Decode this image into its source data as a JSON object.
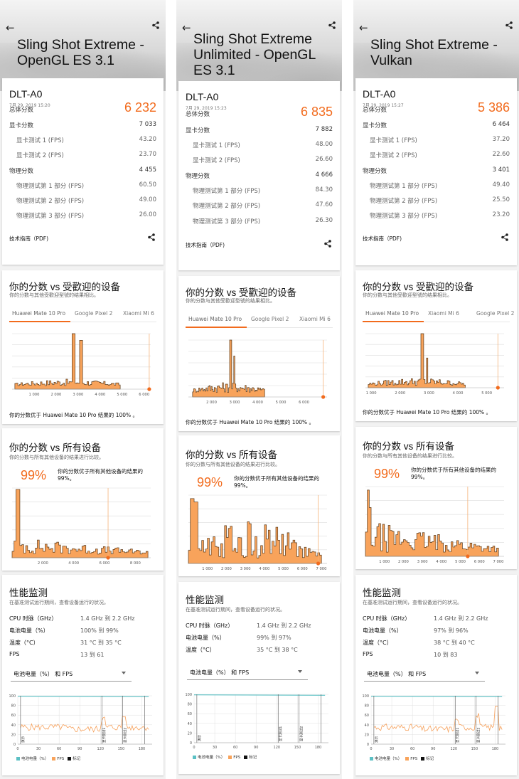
{
  "labels": {
    "total": "总体分数",
    "graphics": "显卡分数",
    "gt1": "显卡测试 1 (FPS)",
    "gt2": "显卡测试 2 (FPS)",
    "physics": "物理分数",
    "pt1": "物理测试第 1 部分 (FPS)",
    "pt2": "物理测试第 2 部分 (FPS)",
    "pt3": "物理测试第 3 部分 (FPS)",
    "tech_guide": "技术指南（PDF)",
    "popular_title": "你的分数 vs 受歡迎的设备",
    "popular_sub": "你的分数与其他受歡迎型號的结果相比。",
    "all_title": "你的分数 vs 所有设备",
    "all_sub": "你的分数与所有其他设备的结果进行比较。",
    "mon_title": "性能监测",
    "mon_sub": "在基准测试运行期间，查看设备运行的状况。",
    "cpu": "CPU 时脉（GHz）",
    "battery": "电池电量（%）",
    "temp": "温度（°C）",
    "fps": "FPS",
    "dropdown": "电池电量（%） 和 FPS",
    "legend_battery": "电池电量（%）",
    "legend_fps": "FPS",
    "legend_mark": "标记",
    "mark_start": "演示",
    "mark_gt1": "显卡测试1",
    "mark_gt2": "显卡测试2"
  },
  "icons": {
    "back": "back-arrow-icon",
    "share": "share-icon",
    "dropdown": "chevron-down-icon"
  },
  "colors": {
    "accent": "#f26b1d",
    "bar_fill": "#f8a35b",
    "bar_stroke": "#5a3a1a",
    "battery_line": "#5bc0c4"
  },
  "columns": [
    {
      "title": "Sling Shot Extreme - OpenGL ES 3.1",
      "device": "DLT-A0",
      "date": "7月 29, 2019 15:20",
      "scores": {
        "total": "6 232",
        "graphics": "7 033",
        "gt1": "43.20",
        "gt2": "23.70",
        "physics": "4 455",
        "pt1": "60.50",
        "pt2": "49.00",
        "pt3": "26.00"
      },
      "tabs": [
        "Huawei Mate 10 Pro",
        "Google Pixel 2",
        "Xiaomi Mi 6"
      ],
      "popular_result": "你的分数优于 Huawei Mate 10 Pro 结果的 100% 。",
      "percentile": "99%",
      "percentile_text": "你的分数优于所有其他设备的结果的 99%。",
      "cpu": "1.4 GHz 到 2.2 GHz",
      "battery": "100% 到 99%",
      "temp": "31 °C 到 35 °C",
      "fps": "13 到 61"
    },
    {
      "title": "Sling Shot Extreme Unlimited - OpenGL ES 3.1",
      "device": "DLT-A0",
      "date": "7月 29, 2019 15:23",
      "scores": {
        "total": "6 835",
        "graphics": "7 882",
        "gt1": "48.00",
        "gt2": "26.60",
        "physics": "4 666",
        "pt1": "84.30",
        "pt2": "47.60",
        "pt3": "26.30"
      },
      "tabs": [
        "Huawei Mate 10 Pro",
        "Google Pixel 2",
        "Xiaomi Mi 6"
      ],
      "popular_result": "你的分数优于 Huawei Mate 10 Pro 结果的 100% 。",
      "percentile": "99%",
      "percentile_text": "你的分数优于所有其他设备的结果的 99%。",
      "cpu": "1.4 GHz 到 2.2 GHz",
      "battery": "99% 到 97%",
      "temp": "35 °C 到 38 °C",
      "fps": ""
    },
    {
      "title": "Sling Shot Extreme - Vulkan",
      "device": "DLT-A0",
      "date": "7月 29, 2019 15:27",
      "scores": {
        "total": "5 386",
        "graphics": "6 464",
        "gt1": "37.20",
        "gt2": "22.60",
        "physics": "3 401",
        "pt1": "49.40",
        "pt2": "25.50",
        "pt3": "23.20"
      },
      "tabs": [
        "Huawei Mate 10 Pro",
        "Xiaomi Mi 6",
        "Google Pixel 2"
      ],
      "popular_result": "你的分数优于 Huawei Mate 10 Pro 结果的 100% 。",
      "percentile": "99%",
      "percentile_text": "你的分数优于所有其他设备的结果的 99%。",
      "cpu": "1.4 GHz 到 2.2 GHz",
      "battery": "97% 到 96%",
      "temp": "38 °C 到 40 °C",
      "fps": "10 到 83"
    }
  ],
  "chart_data": [
    {
      "type": "area",
      "chart": "popular-comparison",
      "column": 1,
      "xticks": [
        "1 000",
        "2 000",
        "3 000",
        "4 000",
        "5 000",
        "6 000"
      ],
      "xlim": [
        0,
        6300
      ],
      "marker_score": 6232
    },
    {
      "type": "area",
      "chart": "all-devices",
      "column": 1,
      "xticks": [
        "2 000",
        "4 000",
        "6 000",
        "8 000"
      ],
      "xlim": [
        0,
        9000
      ],
      "marker_score": 6232
    },
    {
      "type": "line",
      "chart": "monitoring",
      "column": 1,
      "x": [
        0,
        30,
        60,
        90,
        120,
        150,
        180
      ],
      "yticks": [
        0,
        20,
        40,
        60,
        80,
        100
      ],
      "xlabel": "",
      "ylabel": ""
    },
    {
      "type": "area",
      "chart": "popular-comparison",
      "column": 2,
      "xticks": [
        "2 000",
        "3 000",
        "4 000",
        "5 000",
        "6 000"
      ],
      "xlim": [
        1000,
        7000
      ],
      "marker_score": 6835
    },
    {
      "type": "area",
      "chart": "all-devices",
      "column": 2,
      "xticks": [
        "1 000",
        "2 000",
        "3 000",
        "4 000",
        "5 000",
        "6 000",
        "7 000"
      ],
      "xlim": [
        0,
        7300
      ],
      "marker_score": 6835
    },
    {
      "type": "line",
      "chart": "monitoring",
      "column": 2,
      "x": [
        0,
        30,
        60,
        90,
        120,
        150,
        180
      ],
      "yticks": [
        0,
        20,
        40,
        60,
        80,
        100
      ],
      "xlabel": "",
      "ylabel": ""
    },
    {
      "type": "area",
      "chart": "popular-comparison",
      "column": 3,
      "xticks": [
        "1 000",
        "2 000",
        "3 000",
        "4 000",
        "5 000"
      ],
      "xlim": [
        800,
        5600
      ],
      "marker_score": 5386
    },
    {
      "type": "area",
      "chart": "all-devices",
      "column": 3,
      "xticks": [
        "1 000",
        "2 000",
        "3 000",
        "4 000",
        "5 000",
        "6 000",
        "7 000"
      ],
      "xlim": [
        0,
        7300
      ],
      "marker_score": 5386
    },
    {
      "type": "line",
      "chart": "monitoring",
      "column": 3,
      "x": [
        0,
        30,
        60,
        90,
        120,
        150,
        180
      ],
      "yticks": [
        0,
        20,
        40,
        60,
        80,
        100
      ],
      "xlabel": "",
      "ylabel": ""
    }
  ]
}
